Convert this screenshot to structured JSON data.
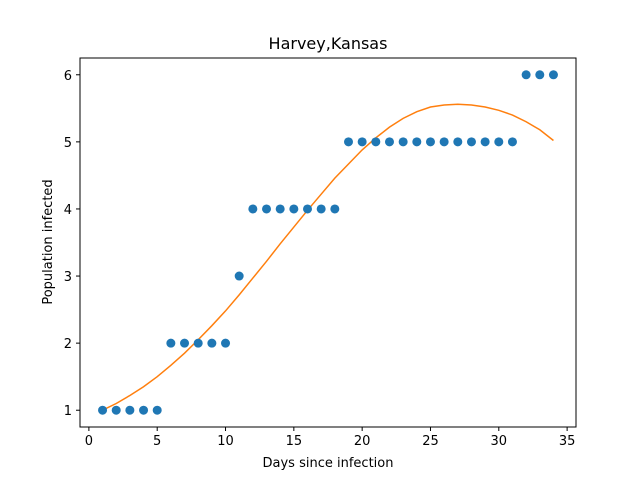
{
  "chart_data": {
    "type": "scatter",
    "title": "Harvey,Kansas",
    "xlabel": "Days since infection",
    "ylabel": "Population infected",
    "xlim": [
      -0.65,
      35.65
    ],
    "ylim": [
      0.75,
      6.25
    ],
    "xticks": [
      0,
      5,
      10,
      15,
      20,
      25,
      30,
      35
    ],
    "yticks": [
      1,
      2,
      3,
      4,
      5,
      6
    ],
    "grid": false,
    "colors": {
      "points": "#1f77b4",
      "fit": "#ff7f0e"
    },
    "series": [
      {
        "kind": "scatter",
        "x": [
          1,
          2,
          3,
          4,
          5,
          6,
          7,
          8,
          9,
          10,
          11,
          12,
          13,
          14,
          15,
          16,
          17,
          18,
          19,
          20,
          21,
          22,
          23,
          24,
          25,
          26,
          27,
          28,
          29,
          30,
          31,
          32,
          33,
          34
        ],
        "y": [
          1,
          1,
          1,
          1,
          1,
          2,
          2,
          2,
          2,
          2,
          3,
          4,
          4,
          4,
          4,
          4,
          4,
          4,
          5,
          5,
          5,
          5,
          5,
          5,
          5,
          5,
          5,
          5,
          5,
          5,
          5,
          6,
          6,
          6
        ]
      },
      {
        "kind": "line",
        "x": [
          1,
          2,
          3,
          4,
          5,
          6,
          7,
          8,
          9,
          10,
          11,
          12,
          13,
          14,
          15,
          16,
          17,
          18,
          19,
          20,
          21,
          22,
          23,
          24,
          25,
          26,
          27,
          28,
          29,
          30,
          31,
          32,
          33,
          34
        ],
        "y": [
          1.0,
          1.1,
          1.22,
          1.35,
          1.5,
          1.67,
          1.85,
          2.05,
          2.26,
          2.48,
          2.72,
          2.97,
          3.22,
          3.48,
          3.73,
          3.98,
          4.22,
          4.46,
          4.67,
          4.88,
          5.06,
          5.22,
          5.35,
          5.45,
          5.52,
          5.55,
          5.56,
          5.55,
          5.52,
          5.47,
          5.4,
          5.3,
          5.18,
          5.02
        ]
      }
    ]
  }
}
